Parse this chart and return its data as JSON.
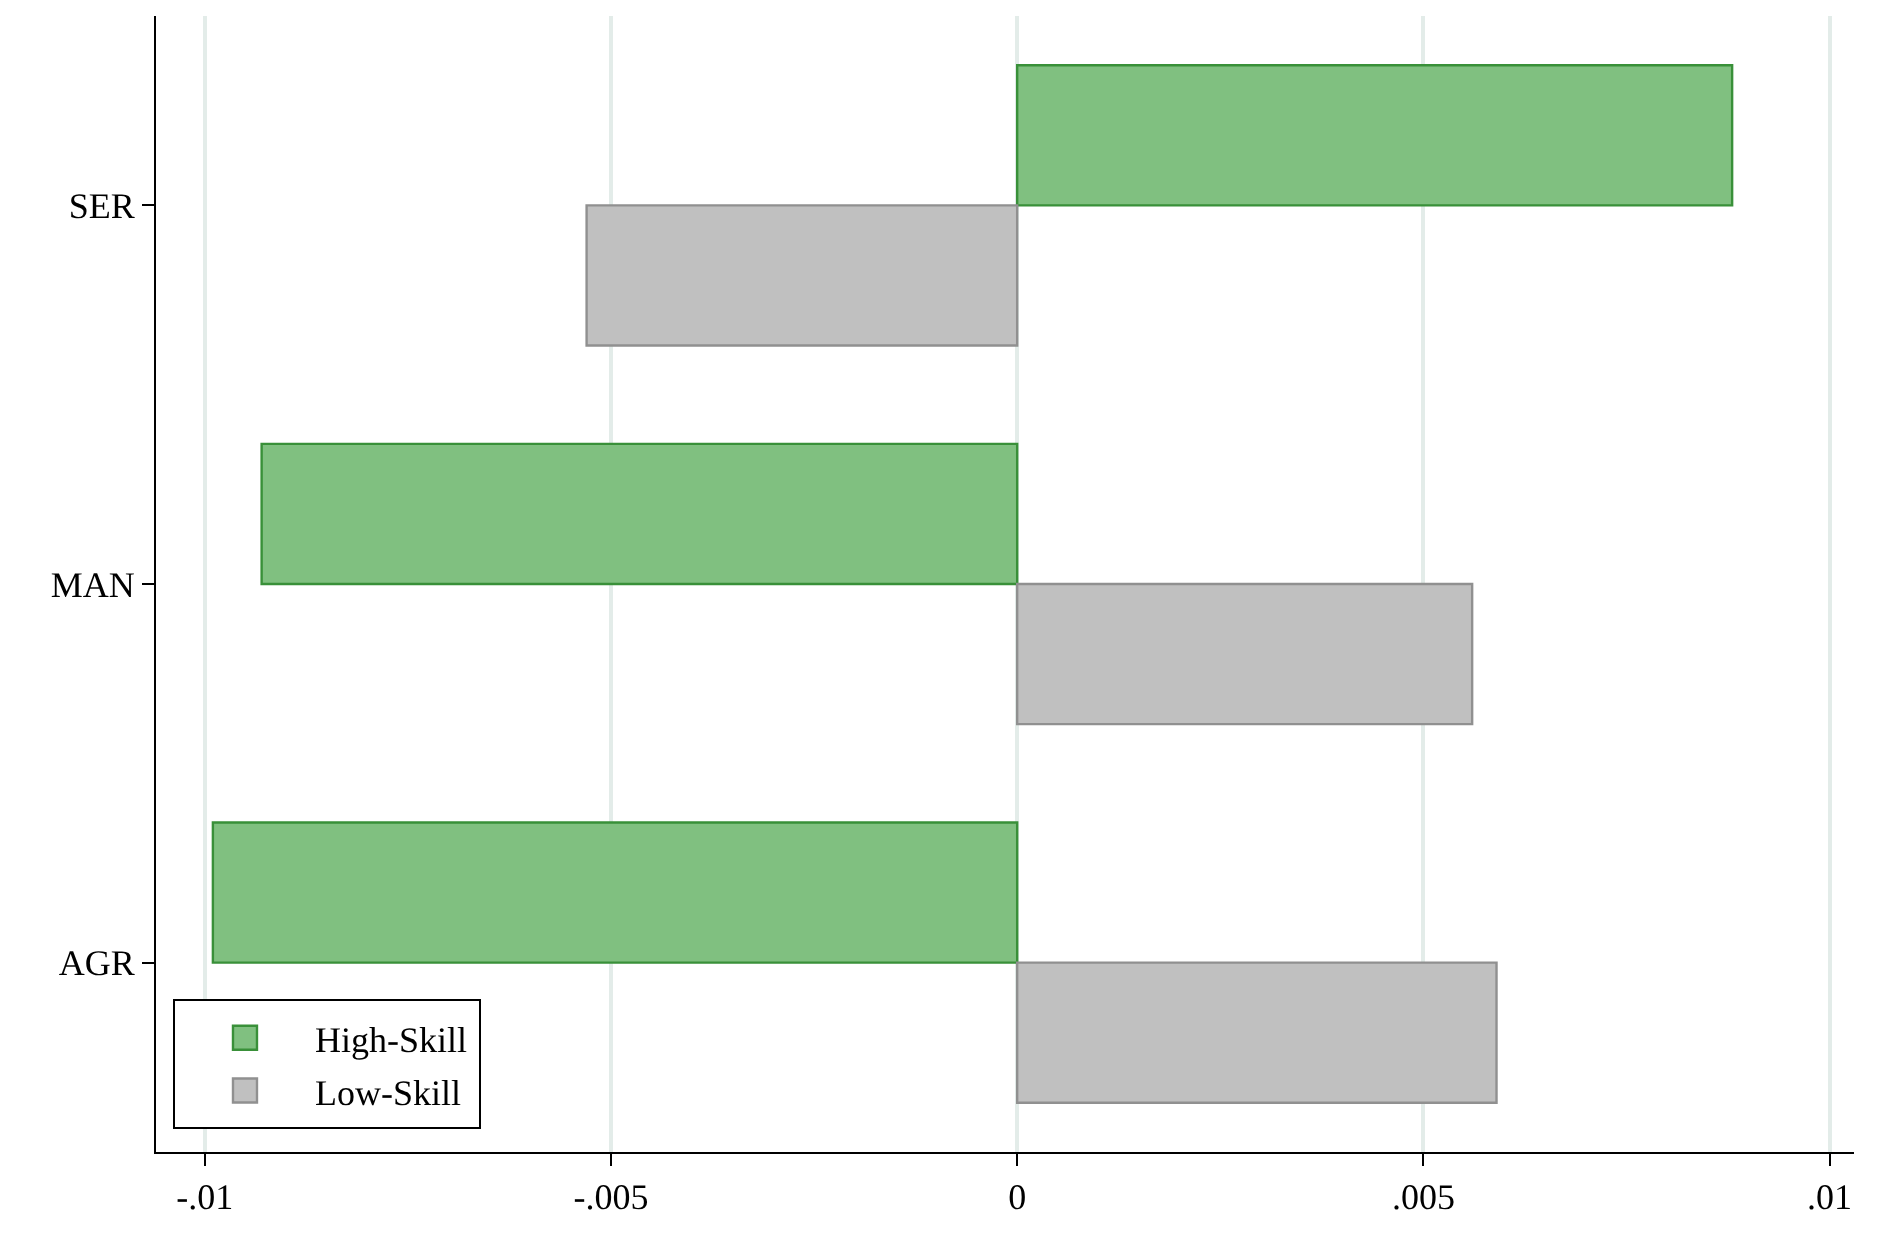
{
  "chart_data": {
    "type": "bar",
    "orientation": "horizontal",
    "categories": [
      "SER",
      "MAN",
      "AGR"
    ],
    "series": [
      {
        "name": "High-Skill",
        "color": "#80c080",
        "values": [
          0.0088,
          -0.0093,
          -0.0099
        ]
      },
      {
        "name": "Low-Skill",
        "color": "#c0c0c0",
        "values": [
          -0.0053,
          0.0056,
          0.0059
        ]
      }
    ],
    "xlim": [
      -0.0106,
      0.0103
    ],
    "xticks": [
      {
        "value": -0.01,
        "label": "-.01"
      },
      {
        "value": -0.005,
        "label": "-.005"
      },
      0,
      {
        "value": 0.005,
        "label": ".005"
      },
      {
        "value": 0.01,
        "label": ".01"
      }
    ],
    "grid": "x",
    "legend": "bottom left"
  }
}
